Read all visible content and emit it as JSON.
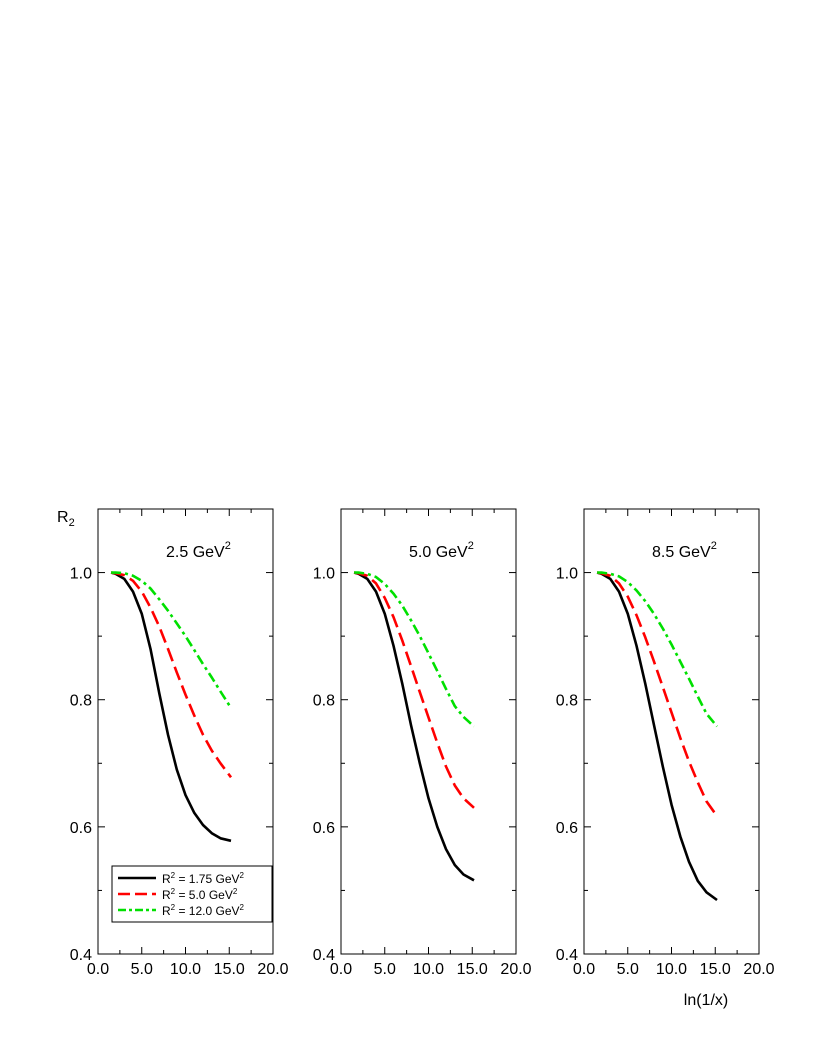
{
  "figure": {
    "y_axis_label": "R",
    "y_axis_label_sub": "2",
    "x_axis_label": "ln(1/x)"
  },
  "legend": {
    "entries": [
      {
        "prefix": "R",
        "sup1": "2",
        "text": " = 1.75 GeV",
        "sup2": "2",
        "color": "#000000",
        "style": "solid"
      },
      {
        "prefix": "R",
        "sup1": "2",
        "text": " = 5.0  GeV",
        "sup2": "2",
        "color": "#ff0000",
        "style": "dashed"
      },
      {
        "prefix": "R",
        "sup1": "2",
        "text": " = 12.0 GeV",
        "sup2": "2",
        "color": "#00e000",
        "style": "dashdot"
      }
    ]
  },
  "chart_data": [
    {
      "type": "line",
      "title": "2.5 GeV",
      "title_sup": "2",
      "xlim": [
        0,
        20
      ],
      "ylim": [
        0.4,
        1.1
      ],
      "xticks": [
        "0.0",
        "5.0",
        "10.0",
        "15.0",
        "20.0"
      ],
      "xtick_values": [
        0,
        5,
        10,
        15,
        20
      ],
      "yticks": [
        "0.4",
        "0.6",
        "0.8",
        "1.0"
      ],
      "ytick_values": [
        0.4,
        0.6,
        0.8,
        1.0
      ],
      "series": [
        {
          "name": "R² = 1.75 GeV²",
          "color": "#000000",
          "style": "solid",
          "x": [
            1.5,
            2,
            3,
            4,
            5,
            6,
            7,
            8,
            9,
            10,
            11,
            12,
            13,
            14,
            15.2
          ],
          "y": [
            1.0,
            0.998,
            0.99,
            0.97,
            0.935,
            0.88,
            0.81,
            0.745,
            0.69,
            0.65,
            0.622,
            0.603,
            0.59,
            0.582,
            0.578
          ]
        },
        {
          "name": "R² = 5.0 GeV²",
          "color": "#ff0000",
          "style": "dashed",
          "x": [
            1.5,
            2,
            3,
            4,
            5,
            6,
            7,
            8,
            9,
            10,
            11,
            12,
            13,
            14,
            15.2
          ],
          "y": [
            1.0,
            0.999,
            0.996,
            0.987,
            0.97,
            0.945,
            0.915,
            0.88,
            0.843,
            0.808,
            0.775,
            0.745,
            0.72,
            0.7,
            0.678
          ]
        },
        {
          "name": "R² = 12.0 GeV²",
          "color": "#00e000",
          "style": "dashdot",
          "x": [
            1.5,
            2,
            3,
            4,
            5,
            6,
            7,
            8,
            9,
            10,
            11,
            12,
            13,
            14,
            15.2
          ],
          "y": [
            1.0,
            1.0,
            0.999,
            0.995,
            0.987,
            0.975,
            0.958,
            0.94,
            0.92,
            0.9,
            0.878,
            0.856,
            0.835,
            0.813,
            0.787
          ]
        }
      ]
    },
    {
      "type": "line",
      "title": "5.0 GeV",
      "title_sup": "2",
      "xlim": [
        0,
        20
      ],
      "ylim": [
        0.4,
        1.1
      ],
      "xticks": [
        "0.0",
        "5.0",
        "10.0",
        "15.0",
        "20.0"
      ],
      "xtick_values": [
        0,
        5,
        10,
        15,
        20
      ],
      "yticks": [
        "0.4",
        "0.6",
        "0.8",
        "1.0"
      ],
      "ytick_values": [
        0.4,
        0.6,
        0.8,
        1.0
      ],
      "series": [
        {
          "name": "R² = 1.75 GeV²",
          "color": "#000000",
          "style": "solid",
          "x": [
            1.5,
            2,
            3,
            4,
            5,
            6,
            7,
            8,
            9,
            10,
            11,
            12,
            13,
            14,
            15.2
          ],
          "y": [
            1.0,
            0.998,
            0.99,
            0.97,
            0.935,
            0.885,
            0.825,
            0.76,
            0.7,
            0.645,
            0.6,
            0.565,
            0.54,
            0.525,
            0.516
          ]
        },
        {
          "name": "R² = 5.0 GeV²",
          "color": "#ff0000",
          "style": "dashed",
          "x": [
            1.5,
            2,
            3,
            4,
            5,
            6,
            7,
            8,
            9,
            10,
            11,
            12,
            13,
            14,
            15.2
          ],
          "y": [
            1.0,
            0.999,
            0.995,
            0.983,
            0.96,
            0.93,
            0.893,
            0.853,
            0.812,
            0.772,
            0.732,
            0.695,
            0.665,
            0.645,
            0.63
          ]
        },
        {
          "name": "R² = 12.0 GeV²",
          "color": "#00e000",
          "style": "dashdot",
          "x": [
            1.5,
            2,
            3,
            4,
            5,
            6,
            7,
            8,
            9,
            10,
            11,
            12,
            13,
            14,
            15.2
          ],
          "y": [
            1.0,
            1.0,
            0.998,
            0.993,
            0.982,
            0.967,
            0.948,
            0.925,
            0.9,
            0.873,
            0.845,
            0.817,
            0.79,
            0.773,
            0.758
          ]
        }
      ]
    },
    {
      "type": "line",
      "title": "8.5 GeV",
      "title_sup": "2",
      "xlim": [
        0,
        20
      ],
      "ylim": [
        0.4,
        1.1
      ],
      "xticks": [
        "0.0",
        "5.0",
        "10.0",
        "15.0",
        "20.0"
      ],
      "xtick_values": [
        0,
        5,
        10,
        15,
        20
      ],
      "yticks": [
        "0.4",
        "0.6",
        "0.8",
        "1.0"
      ],
      "ytick_values": [
        0.4,
        0.6,
        0.8,
        1.0
      ],
      "series": [
        {
          "name": "R² = 1.75 GeV²",
          "color": "#000000",
          "style": "solid",
          "x": [
            1.5,
            2,
            3,
            4,
            5,
            6,
            7,
            8,
            9,
            10,
            11,
            12,
            13,
            14,
            15.2
          ],
          "y": [
            1.0,
            0.998,
            0.99,
            0.97,
            0.935,
            0.885,
            0.825,
            0.76,
            0.695,
            0.635,
            0.585,
            0.545,
            0.515,
            0.497,
            0.485
          ]
        },
        {
          "name": "R² = 5.0 GeV²",
          "color": "#ff0000",
          "style": "dashed",
          "x": [
            1.5,
            2,
            3,
            4,
            5,
            6,
            7,
            8,
            9,
            10,
            11,
            12,
            13,
            14,
            15.2
          ],
          "y": [
            1.0,
            0.999,
            0.995,
            0.983,
            0.962,
            0.933,
            0.898,
            0.86,
            0.82,
            0.78,
            0.74,
            0.703,
            0.67,
            0.64,
            0.617
          ]
        },
        {
          "name": "R² = 12.0 GeV²",
          "color": "#00e000",
          "style": "dashdot",
          "x": [
            1.5,
            2,
            3,
            4,
            5,
            6,
            7,
            8,
            9,
            10,
            11,
            12,
            13,
            14,
            15.2
          ],
          "y": [
            1.0,
            1.0,
            0.998,
            0.994,
            0.985,
            0.972,
            0.955,
            0.935,
            0.912,
            0.887,
            0.86,
            0.833,
            0.805,
            0.778,
            0.758
          ]
        }
      ]
    }
  ]
}
